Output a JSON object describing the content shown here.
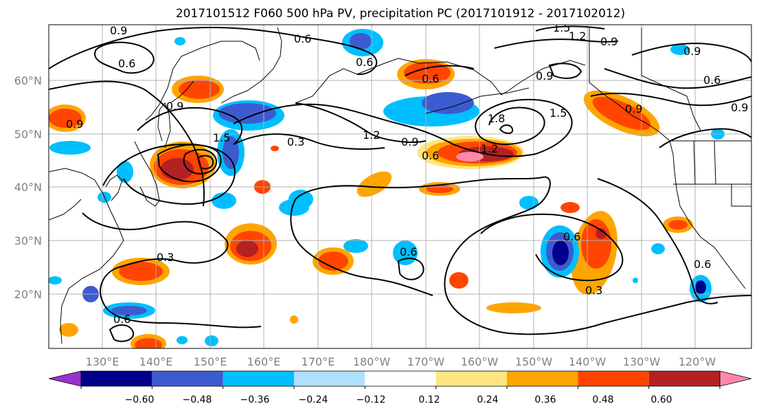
{
  "title": "2017101512 F060 500 hPa PV, precipitation PC (2017101912 - 2017102012)",
  "map": {
    "lat_labels": [
      "60°N",
      "50°N",
      "40°N",
      "30°N",
      "20°N"
    ],
    "lon_labels": [
      "130°E",
      "140°E",
      "150°E",
      "160°E",
      "170°E",
      "180°W",
      "170°W",
      "160°W",
      "150°W",
      "140°W",
      "130°W",
      "120°W"
    ],
    "contour_labels": [
      "0.9",
      "0.6",
      "1.5",
      "1.2",
      "0.9",
      "0.9",
      "0.6",
      "0.9",
      "0.9",
      "0.6",
      "0.6",
      "0.9",
      "1.2",
      "1.5",
      "1.8",
      "0.9",
      "0.6",
      "1.5",
      "0.3",
      "1.2",
      "0.9",
      "0.9",
      "0.6",
      "0.3",
      "0.6",
      "0.6",
      "0.6",
      "0.3",
      "0.6"
    ],
    "contour_levels_pv": [
      0.3,
      0.6,
      0.9,
      1.2,
      1.5,
      1.8
    ]
  },
  "colorbar": {
    "tick_labels": [
      "−0.60",
      "−0.48",
      "−0.36",
      "−0.24",
      "−0.12",
      "0.12",
      "0.24",
      "0.36",
      "0.48",
      "0.60"
    ],
    "bounds": [
      -0.6,
      -0.48,
      -0.36,
      -0.24,
      -0.12,
      0.12,
      0.24,
      0.36,
      0.48,
      0.6
    ],
    "colors": [
      "#9932cc",
      "#00008b",
      "#3d5bd0",
      "#00bfff",
      "#b0e0ff",
      "#ffffff",
      "#ffe680",
      "#ffa500",
      "#ff4500",
      "#b22222",
      "#ff88aa"
    ]
  }
}
